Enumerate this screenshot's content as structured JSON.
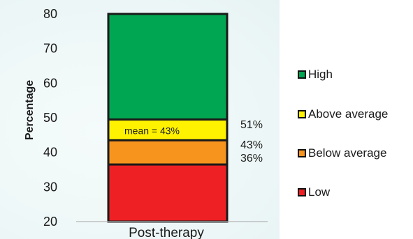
{
  "chart_data": {
    "type": "bar",
    "stacked": true,
    "title": "",
    "ylabel": "Percentage",
    "xlabel": "",
    "categories": [
      "Post-therapy"
    ],
    "ylim": [
      20,
      80
    ],
    "yticks": [
      20,
      30,
      40,
      50,
      60,
      70,
      80
    ],
    "grid": false,
    "legend_position": "right",
    "segments": [
      {
        "name": "Low",
        "from": 20,
        "to": 36.5,
        "color": "#ee2024"
      },
      {
        "name": "Below average",
        "from": 36.5,
        "to": 43.5,
        "color": "#f7941d"
      },
      {
        "name": "Above average",
        "from": 43.5,
        "to": 49.5,
        "color": "#fff200"
      },
      {
        "name": "High",
        "from": 49.5,
        "to": 80,
        "color": "#00a651"
      }
    ],
    "annotations": [
      {
        "text": "mean = 43%",
        "y": 46.5
      },
      {
        "text": "51%",
        "y": 48.2
      },
      {
        "text": "43%",
        "y": 42.3
      },
      {
        "text": "36%",
        "y": 38.5
      }
    ],
    "legend": [
      {
        "label": "High",
        "color": "#00a651"
      },
      {
        "label": "Above average",
        "color": "#fff200"
      },
      {
        "label": "Below average",
        "color": "#f7941d"
      },
      {
        "label": "Low",
        "color": "#ee2024"
      }
    ]
  }
}
